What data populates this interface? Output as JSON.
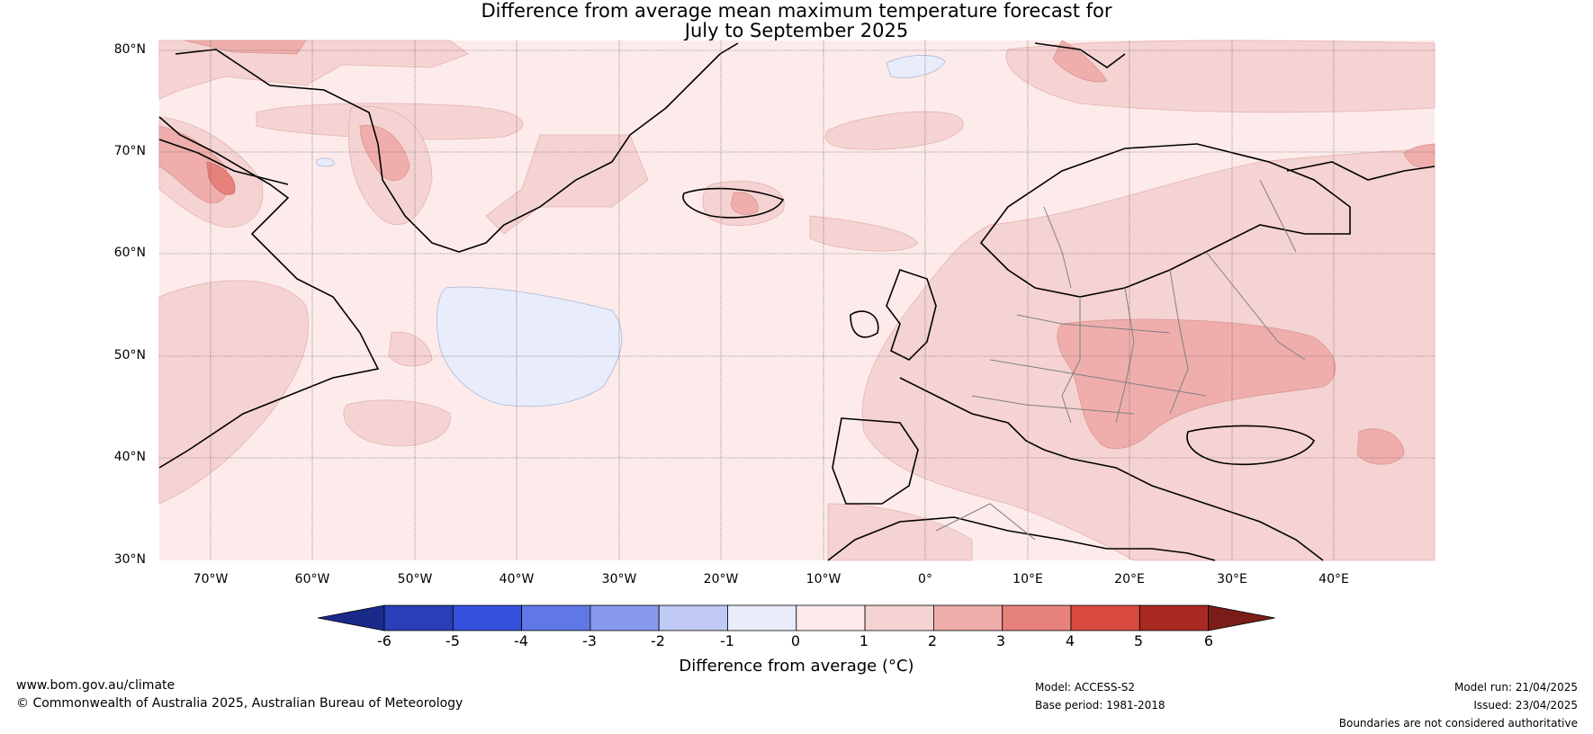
{
  "title_line1": "Difference from average mean maximum temperature forecast for",
  "title_line2": "July to September 2025",
  "latitudes": [
    "80°N",
    "70°N",
    "60°N",
    "50°N",
    "40°N",
    "30°N"
  ],
  "longitudes": [
    "70°W",
    "60°W",
    "50°W",
    "40°W",
    "30°W",
    "20°W",
    "10°W",
    "0°",
    "10°E",
    "20°E",
    "30°E",
    "40°E"
  ],
  "colorbar": {
    "ticks": [
      "-6",
      "-5",
      "-4",
      "-3",
      "-2",
      "-1",
      "0",
      "1",
      "2",
      "3",
      "4",
      "5",
      "6"
    ],
    "colors": [
      "#1a2a8a",
      "#2a3fb8",
      "#3550dc",
      "#5f78e6",
      "#8799ec",
      "#c0c9f4",
      "#e8ecfb",
      "#fcebea",
      "#f5d3d2",
      "#efaeac",
      "#e6817c",
      "#d84a40",
      "#a92a22",
      "#7a1d18"
    ],
    "title": "Difference from average (°C)"
  },
  "footer": {
    "website": "www.bom.gov.au/climate",
    "copyright": "© Commonwealth of Australia 2025, Australian Bureau of Meteorology",
    "model": "Model: ACCESS-S2",
    "base_period": "Base period: 1981-2018",
    "model_run": "Model run: 21/04/2025",
    "issued": "Issued: 23/04/2025",
    "boundaries": "Boundaries are not considered authoritative"
  }
}
